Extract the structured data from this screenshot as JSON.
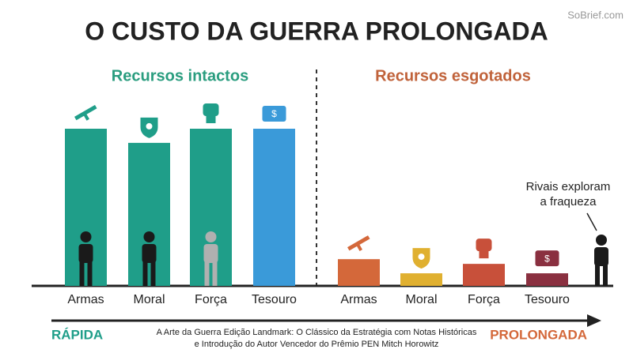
{
  "header": {
    "title": "O CUSTO DA GUERRA PROLONGADA",
    "watermark": "SoBrief.com"
  },
  "annotation": [
    "Rivais exploram",
    "a fraqueza"
  ],
  "footer": {
    "start": "RÁPIDA",
    "end": "PROLONGADA",
    "caption": [
      "A Arte da Guerra Edição Landmark: O Clássico da Estratégia com Notas Históricas",
      "e Introdução do Autor Vencedor do Prêmio PEN Mitch Horowitz"
    ]
  },
  "chart_data": [
    {
      "type": "bar",
      "title": "Recursos intactos",
      "title_color": "#2a9d7f",
      "categories": [
        "Armas",
        "Moral",
        "Força",
        "Tesouro"
      ],
      "values": [
        100,
        91,
        100,
        100
      ],
      "colors": [
        "#1f9e89",
        "#1f9e89",
        "#1f9e89",
        "#3a9ad9"
      ],
      "ylim": [
        0,
        100
      ]
    },
    {
      "type": "bar",
      "title": "Recursos esgotados",
      "title_color": "#c0623a",
      "categories": [
        "Armas",
        "Moral",
        "Força",
        "Tesouro"
      ],
      "values": [
        17,
        8,
        14,
        8
      ],
      "colors": [
        "#d4683a",
        "#e0b030",
        "#c8503a",
        "#8a3040"
      ],
      "ylim": [
        0,
        100
      ]
    }
  ]
}
